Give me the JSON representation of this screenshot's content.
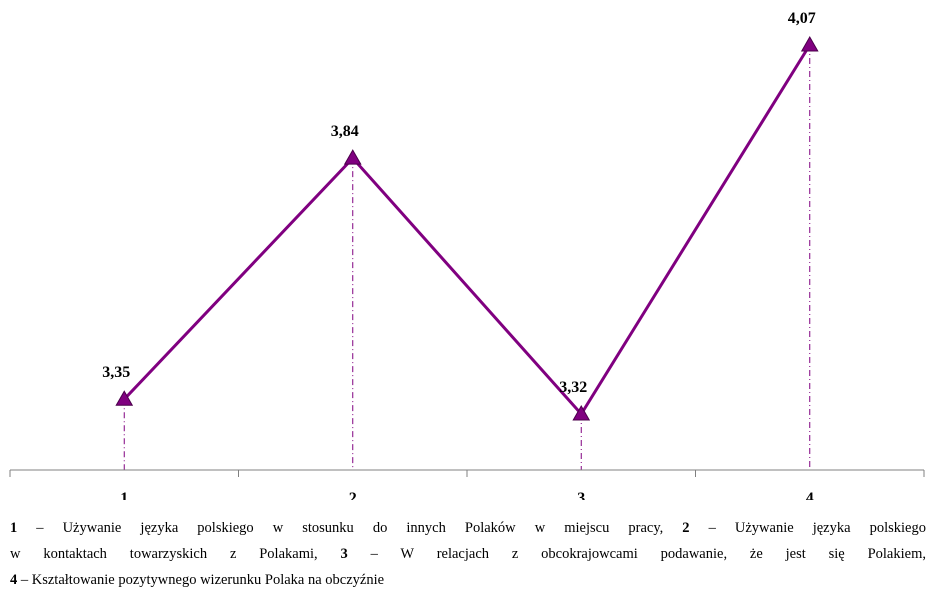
{
  "chart_data": {
    "type": "line",
    "categories": [
      "1",
      "2",
      "3",
      "4"
    ],
    "values": [
      3.35,
      3.84,
      3.32,
      4.07
    ],
    "data_labels": [
      "3,35",
      "3,84",
      "3,32",
      "4,07"
    ],
    "title": "",
    "xlabel": "",
    "ylabel": "",
    "ylim": [
      3.2,
      4.1
    ],
    "grid": false,
    "marker": "triangle",
    "color": "#800080"
  },
  "caption": {
    "items": [
      {
        "num": "1",
        "text": " – Używanie języka polskiego w stosunku do innych Polaków w miejscu pracy, "
      },
      {
        "num": "2",
        "text": " – Używanie języka polskiego w kontaktach towarzyskich z Polakami, "
      },
      {
        "num": "3",
        "text": " – W relacjach z obcokrajowcami podawanie, że jest się Polakiem, "
      },
      {
        "num": "4",
        "text": " – Kształtowanie pozytywnego wizerunku Polaka na obczyźnie"
      }
    ]
  }
}
